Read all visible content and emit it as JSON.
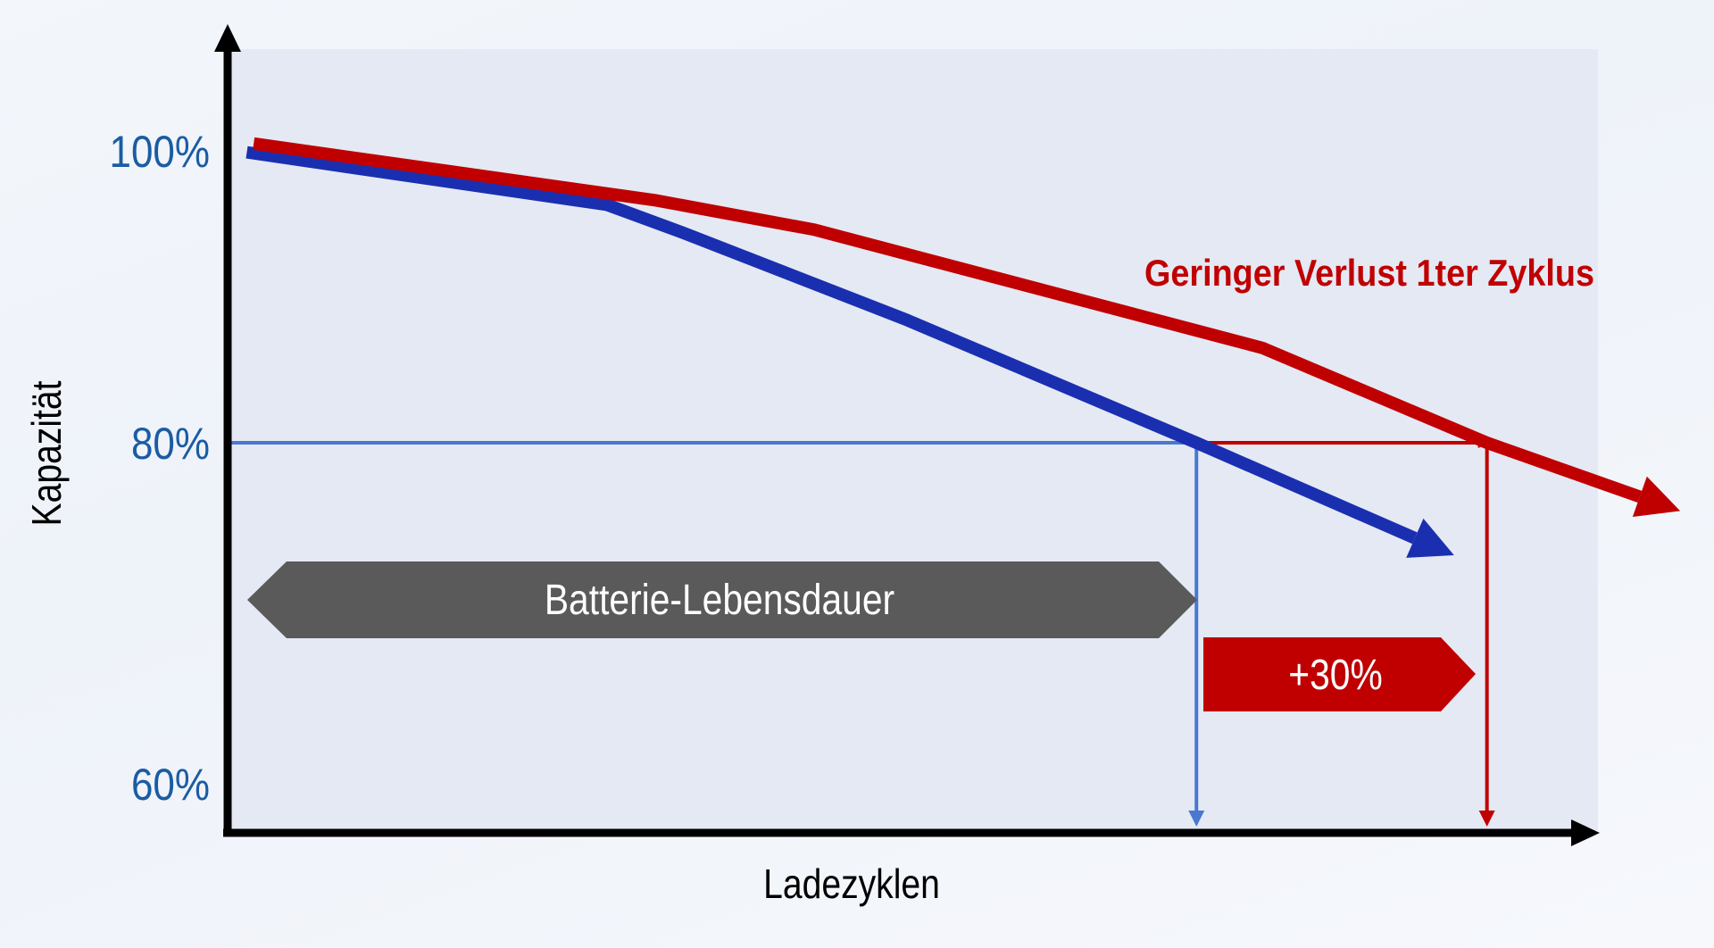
{
  "chart_data": {
    "type": "line",
    "xlabel": "Ladezyklen",
    "ylabel": "Kapazität",
    "y_ticks": [
      {
        "value": 100,
        "label": "100%"
      },
      {
        "value": 80,
        "label": "80%"
      },
      {
        "value": 60,
        "label": "60%"
      }
    ],
    "x_range": [
      0,
      100
    ],
    "grid": false,
    "series": [
      {
        "color": "#1a2fb0",
        "x": [
          1.4,
          27.7,
          33.2,
          49.6,
          70.7,
          89.5
        ],
        "y": [
          99.9,
          96.3,
          94.4,
          88.4,
          80,
          73.4
        ]
      },
      {
        "color": "#c00000",
        "x": [
          1.9,
          31.3,
          42.8,
          75.5,
          91.9,
          106
        ],
        "y": [
          100.5,
          96.6,
          94.6,
          86.5,
          80,
          76
        ]
      }
    ],
    "threshold": {
      "y": 80,
      "x_blue": 70.7,
      "x_red": 91.9
    },
    "annotations": {
      "red_series_label": "Geringer Verlust 1ter Zyklus",
      "lifetime_banner": "Batterie-Lebensdauer",
      "gain_banner": "+30%"
    },
    "colors": {
      "red": "#c00000",
      "blue": "#1a2fb0",
      "guide_blue": "#4a78d0",
      "banner_grey": "#5a5a5a",
      "tick_blue": "#1b5ca3"
    }
  }
}
